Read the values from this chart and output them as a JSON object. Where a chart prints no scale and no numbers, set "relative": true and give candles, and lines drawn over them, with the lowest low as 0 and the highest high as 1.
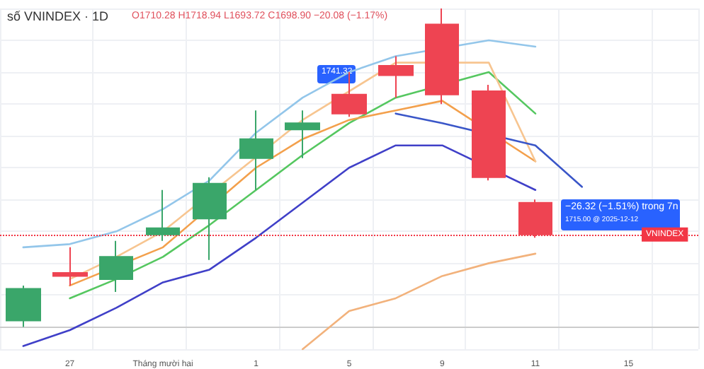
{
  "chart_data": {
    "type": "candlestick",
    "title": "số VNINDEX · 1D",
    "subtitle": "O1710.28 H1718.94 L1693.72 C1698.90 −20.08 (−1.17%)",
    "relative": true,
    "categories": [
      null,
      "27",
      null,
      "Tháng mười hai",
      null,
      "1",
      null,
      "5",
      null,
      "9",
      null,
      "11",
      null,
      "15",
      null
    ],
    "ohlc": [
      [
        0.02,
        0.13,
        0,
        0.12
      ],
      [
        0.17,
        0.25,
        0.13,
        0.16
      ],
      [
        0.15,
        0.27,
        0.11,
        0.22
      ],
      [
        0.29,
        0.43,
        0.27,
        0.31
      ],
      [
        0.34,
        0.47,
        0.21,
        0.45
      ],
      [
        0.53,
        0.68,
        0.43,
        0.59
      ],
      [
        0.62,
        0.68,
        0.53,
        0.64
      ],
      [
        0.73,
        0.8,
        0.66,
        0.67
      ],
      [
        0.82,
        0.85,
        0.72,
        0.79
      ],
      [
        0.95,
        1,
        0.7,
        0.73
      ],
      [
        0.74,
        0.76,
        0.46,
        0.47
      ],
      [
        0.39,
        0.4,
        0.28,
        0.29
      ],
      null,
      null,
      null
    ],
    "colors": [
      "#3aa66a",
      "#ee4452",
      "#3aa66a",
      "#3aa66a",
      "#3aa66a",
      "#3aa66a",
      "#3aa66a",
      "#ee4452",
      "#ee4452",
      "#ee4452",
      "#ee4452",
      "#ee4452",
      null,
      null,
      null
    ],
    "series": [
      {
        "type": "line",
        "color": "#93c6ea",
        "values": [
          0.25,
          0.26,
          0.3,
          0.37,
          0.46,
          0.61,
          0.72,
          0.8,
          0.85,
          null,
          0.9,
          0.88,
          null,
          null,
          null
        ]
      },
      {
        "type": "line",
        "color": "#4040c8",
        "values": [
          -0.06,
          -0.01,
          0.06,
          0.14,
          0.18,
          0.28,
          0.39,
          0.5,
          0.57,
          0.57,
          null,
          0.43,
          null,
          null,
          null
        ]
      },
      {
        "type": "line",
        "color": "#55c760",
        "values": [
          null,
          0.09,
          0.15,
          0.22,
          0.32,
          0.43,
          0.54,
          0.64,
          0.72,
          null,
          0.8,
          0.67,
          null,
          null,
          null
        ]
      },
      {
        "type": "line",
        "color": "#f3a04c",
        "values": [
          null,
          0.13,
          null,
          0.25,
          null,
          0.5,
          0.59,
          0.65,
          0.68,
          0.71,
          null,
          0.52,
          null,
          null,
          null
        ]
      },
      {
        "type": "line",
        "color": "#f7c590",
        "values": [
          null,
          0.15,
          0.22,
          0.3,
          null,
          null,
          0.65,
          null,
          0.83,
          null,
          0.83,
          0.52,
          null,
          null,
          null
        ]
      },
      {
        "type": "line",
        "color": "#f2b27c",
        "values": [
          null,
          null,
          null,
          null,
          null,
          null,
          -0.07,
          0.05,
          0.09,
          0.16,
          0.2,
          0.23,
          null,
          null,
          null
        ]
      },
      {
        "type": "line",
        "color": "#3a56c8",
        "values": [
          null,
          null,
          null,
          null,
          null,
          null,
          null,
          null,
          0.67,
          0.64,
          null,
          0.57,
          0.44,
          null,
          null
        ]
      }
    ],
    "ref_lines": [
      {
        "axis": "y",
        "value": 0.29,
        "label": "VNINDEX",
        "color": "#f23645",
        "line_style": "dotted"
      }
    ],
    "annotations": [
      "1741.32",
      "−26.32 (−1.51%) trong 7n",
      "1715.00 @ 2025-12-12"
    ],
    "grid": true,
    "marker": "none",
    "line_style": "solid"
  }
}
